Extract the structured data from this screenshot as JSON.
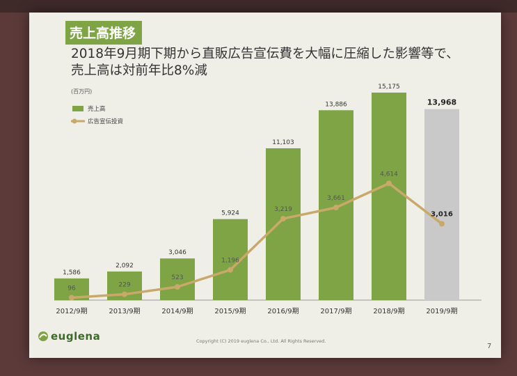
{
  "slide": {
    "title": "売上高推移",
    "subtitle": "2018年9月期下期から直販広告宣伝費を大幅に圧縮した影響等で、売上高は対前年比8%減",
    "brand": "euglena",
    "copyright": "Copyright (C) 2019 euglena Co., Ltd. All Rights Reserved.",
    "page_number": "7"
  },
  "colors": {
    "accent": "#7ea446",
    "bar": "#7ea446",
    "bar_forecast": "#c9c9c9",
    "line": "#c9a96a",
    "background": "#efefe8"
  },
  "chart_data": {
    "type": "bar",
    "unit_label": "(百万円)",
    "categories": [
      "2012/9期",
      "2013/9期",
      "2014/9期",
      "2015/9期",
      "2016/9期",
      "2017/9期",
      "2018/9期",
      "2019/9期"
    ],
    "series": [
      {
        "name": "売上高",
        "type": "bar",
        "values": [
          1586,
          2092,
          3046,
          5924,
          11103,
          13886,
          15175,
          13968
        ]
      },
      {
        "name": "広告宣伝投資",
        "type": "line",
        "values": [
          96,
          229,
          523,
          1196,
          3219,
          3661,
          4614,
          3016
        ]
      }
    ],
    "bar_labels": [
      "1,586",
      "2,092",
      "3,046",
      "5,924",
      "11,103",
      "13,886",
      "15,175",
      "13,968"
    ],
    "line_labels": [
      "96",
      "229",
      "523",
      "1,196",
      "3,219",
      "3,661",
      "4,614",
      "3,016"
    ],
    "highlighted_category": "2019/9期",
    "ylim": [
      0,
      15175
    ],
    "grid": false,
    "legend_position": "top-left"
  }
}
